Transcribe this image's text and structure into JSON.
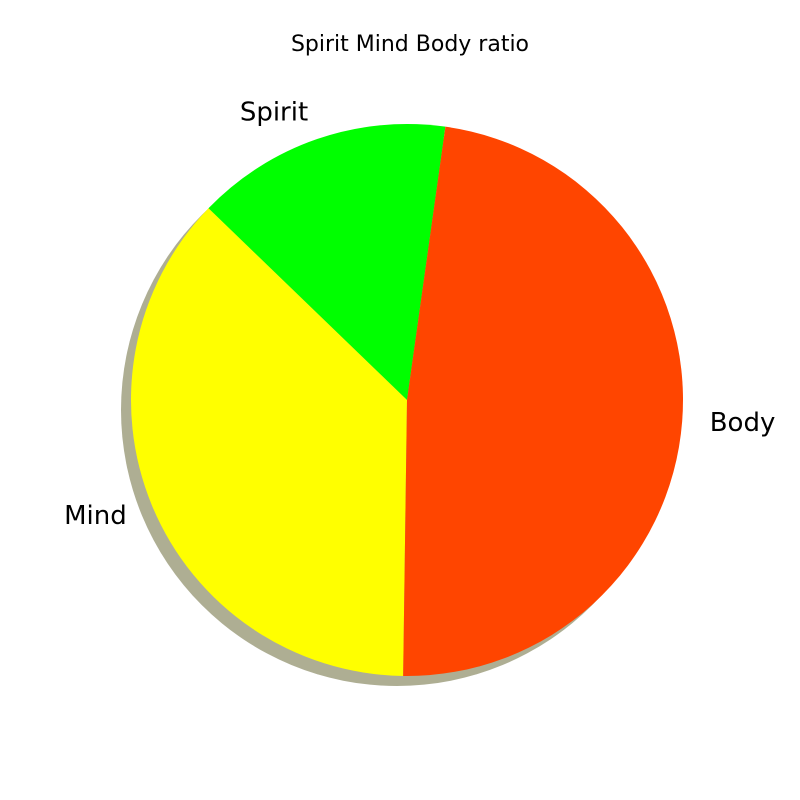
{
  "chart_data": {
    "type": "pie",
    "title": "Spirit Mind Body ratio",
    "slices": [
      {
        "label": "Spirit",
        "value": 15,
        "color": "#00ff00"
      },
      {
        "label": "Mind",
        "value": 37,
        "color": "#ffff00"
      },
      {
        "label": "Body",
        "value": 48,
        "color": "#ff4500"
      }
    ],
    "shadow": true,
    "legend": "none"
  }
}
